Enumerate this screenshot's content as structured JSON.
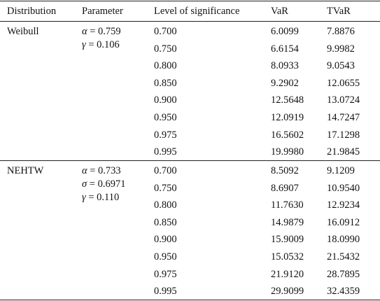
{
  "headers": {
    "distribution": "Distribution",
    "parameter": "Parameter",
    "level": "Level of significance",
    "var": "VaR",
    "tvar": "TVaR"
  },
  "groups": [
    {
      "name": "Weibull",
      "params": [
        {
          "sym": "α",
          "val": "= 0.759"
        },
        {
          "sym": "γ",
          "val": "= 0.106"
        }
      ],
      "rows": [
        {
          "level": "0.700",
          "var": "6.0099",
          "tvar": "7.8876"
        },
        {
          "level": "0.750",
          "var": "6.6154",
          "tvar": "9.9982"
        },
        {
          "level": "0.800",
          "var": "8.0933",
          "tvar": "9.0543"
        },
        {
          "level": "0.850",
          "var": "9.2902",
          "tvar": "12.0655"
        },
        {
          "level": "0.900",
          "var": "12.5648",
          "tvar": "13.0724"
        },
        {
          "level": "0.950",
          "var": "12.0919",
          "tvar": "14.7247"
        },
        {
          "level": "0.975",
          "var": "16.5602",
          "tvar": "17.1298"
        },
        {
          "level": "0.995",
          "var": "19.9980",
          "tvar": "21.9845"
        }
      ]
    },
    {
      "name": "NEHTW",
      "params": [
        {
          "sym": "α",
          "val": "= 0.733"
        },
        {
          "sym": "σ",
          "val": "= 0.6971"
        },
        {
          "sym": "γ",
          "val": "= 0.110"
        }
      ],
      "rows": [
        {
          "level": "0.700",
          "var": "8.5092",
          "tvar": "9.1209"
        },
        {
          "level": "0.750",
          "var": "8.6907",
          "tvar": "10.9540"
        },
        {
          "level": "0.800",
          "var": "11.7630",
          "tvar": "12.9234"
        },
        {
          "level": "0.850",
          "var": "14.9879",
          "tvar": "16.0912"
        },
        {
          "level": "0.900",
          "var": "15.9009",
          "tvar": "18.0990"
        },
        {
          "level": "0.950",
          "var": "15.0532",
          "tvar": "21.5432"
        },
        {
          "level": "0.975",
          "var": "21.9120",
          "tvar": "28.7895"
        },
        {
          "level": "0.995",
          "var": "29.9099",
          "tvar": "32.4359"
        }
      ]
    }
  ]
}
